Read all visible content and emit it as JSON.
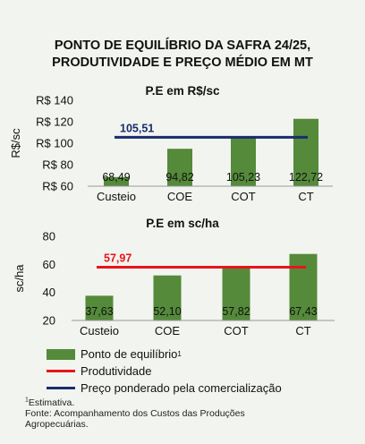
{
  "title": {
    "line1": "PONTO DE EQUILÍBRIO DA SAFRA 24/25,",
    "line2": "PRODUTIVIDADE E PREÇO MÉDIO EM MT"
  },
  "chart_data": [
    {
      "type": "bar",
      "title": "P.E em R$/sc",
      "ylabel": "R$/sc",
      "categories": [
        "Custeio",
        "COE",
        "COT",
        "CT"
      ],
      "series": [
        {
          "name": "Ponto de equilíbrio",
          "values": [
            68.49,
            94.82,
            105.23,
            122.72
          ],
          "labels": [
            "68,49",
            "94,82",
            "105,23",
            "122,72"
          ],
          "color": "#548a3a"
        }
      ],
      "reference_line": {
        "name": "Preço ponderado pela comercialização",
        "value": 105.51,
        "label": "105,51",
        "color": "#1a2b6e"
      },
      "ylim": [
        60,
        140
      ],
      "yticks": [
        60,
        80,
        100,
        120,
        140
      ],
      "ytick_labels": [
        "R$ 60",
        "R$ 80",
        "R$ 100",
        "R$ 120",
        "R$ 140"
      ],
      "grid": false
    },
    {
      "type": "bar",
      "title": "P.E em sc/ha",
      "ylabel": "sc/ha",
      "categories": [
        "Custeio",
        "COE",
        "COT",
        "CT"
      ],
      "series": [
        {
          "name": "Ponto de equilíbrio",
          "values": [
            37.63,
            52.1,
            57.82,
            67.43
          ],
          "labels": [
            "37,63",
            "52,10",
            "57,82",
            "67,43"
          ],
          "color": "#548a3a"
        }
      ],
      "reference_line": {
        "name": "Produtividade",
        "value": 57.97,
        "label": "57,97",
        "color": "#e8141c"
      },
      "ylim": [
        20,
        80
      ],
      "yticks": [
        20,
        40,
        60,
        80
      ],
      "ytick_labels": [
        "20",
        "40",
        "60",
        "80"
      ],
      "grid": false
    }
  ],
  "legend": {
    "items": [
      {
        "label": "Ponto de equilíbrio",
        "sup": "1",
        "type": "bar",
        "color": "#548a3a"
      },
      {
        "label": "Produtividade",
        "sup": "",
        "type": "line",
        "color": "#e8141c"
      },
      {
        "label": "Preço ponderado pela comercialização",
        "sup": "",
        "type": "line",
        "color": "#1a2b6e"
      }
    ]
  },
  "footnotes": {
    "sup": "1",
    "note": "Estimativa.",
    "source_line1": "Fonte: Acompanhamento dos Custos das Produções",
    "source_line2": "Agropecuárias."
  }
}
